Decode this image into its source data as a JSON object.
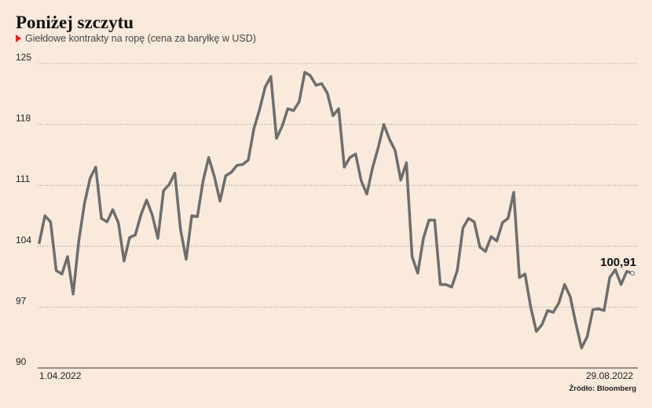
{
  "chart_data": {
    "type": "line",
    "title": "Poniżej szczytu",
    "subtitle": "Giełdowe kontrakty na ropę (cena za baryłkę w USD)",
    "source": "Źródło: Bloomberg",
    "x_start_label": "1.04.2022",
    "x_end_label": "29.08.2022",
    "ylim": [
      90,
      125
    ],
    "yticks": [
      90,
      97,
      104,
      111,
      118,
      125
    ],
    "grid": true,
    "last_value_label": "100,91",
    "line_color": "#6d6d6d",
    "series": [
      {
        "values": [
          104.4,
          107.5,
          106.8,
          101.2,
          100.8,
          102.8,
          98.5,
          104.6,
          108.9,
          111.8,
          113.1,
          107.2,
          106.8,
          108.2,
          106.7,
          102.3,
          105.0,
          105.3,
          107.6,
          109.3,
          107.6,
          104.9,
          110.4,
          111.1,
          112.4,
          105.9,
          102.5,
          107.5,
          107.4,
          111.5,
          114.2,
          112.0,
          109.2,
          112.1,
          112.5,
          113.3,
          113.4,
          113.9,
          117.5,
          119.7,
          122.3,
          123.5,
          116.4,
          117.8,
          119.8,
          119.6,
          120.6,
          124.0,
          123.6,
          122.5,
          122.7,
          121.6,
          119.0,
          119.8,
          113.1,
          114.2,
          114.6,
          111.5,
          110.0,
          113.0,
          115.3,
          118.0,
          116.3,
          115.0,
          111.6,
          113.6,
          102.8,
          100.9,
          104.9,
          107.0,
          107.0,
          99.6,
          99.6,
          99.3,
          101.2,
          106.1,
          107.2,
          106.8,
          103.9,
          103.4,
          105.1,
          104.6,
          106.7,
          107.2,
          110.2,
          100.4,
          100.8,
          97.0,
          94.2,
          95.0,
          96.6,
          96.4,
          97.5,
          99.6,
          98.2,
          95.1,
          92.3,
          93.6,
          96.7,
          96.8,
          96.6,
          100.4,
          101.3,
          99.6,
          101.1,
          100.9
        ]
      }
    ]
  }
}
